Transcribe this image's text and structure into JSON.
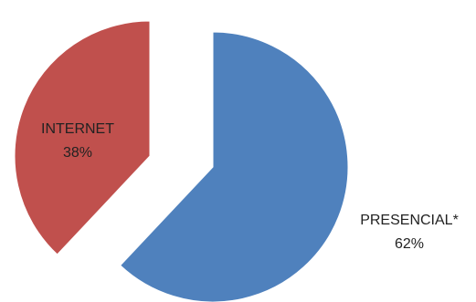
{
  "chart_data": {
    "type": "pie",
    "title": "",
    "exploded": true,
    "slices": [
      {
        "label": "PRESENCIAL*",
        "value": 62,
        "value_label": "62%",
        "color": "#4f81bd"
      },
      {
        "label": "INTERNET",
        "value": 38,
        "value_label": "38%",
        "color": "#c0504d"
      }
    ]
  }
}
